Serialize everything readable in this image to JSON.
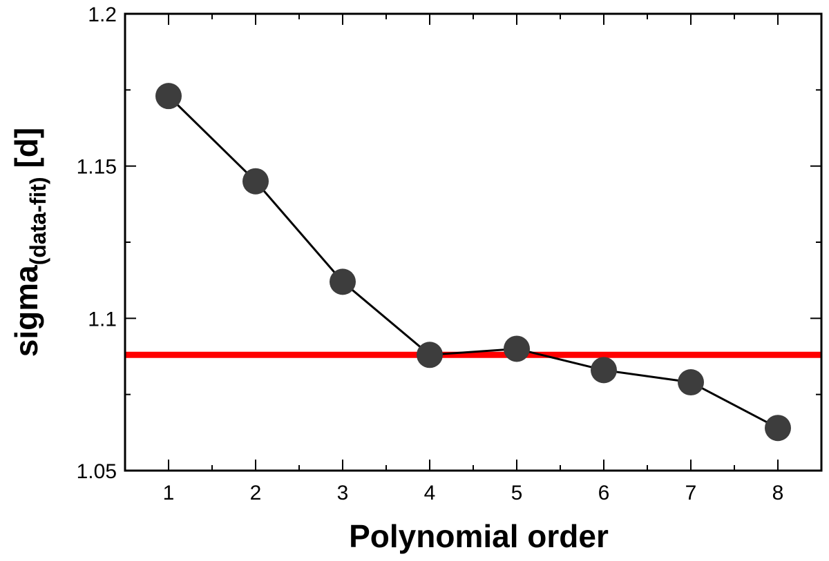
{
  "chart_data": {
    "type": "line",
    "title": "",
    "xlabel": "Polynomial order",
    "ylabel": {
      "base": "sigma",
      "subscript": "(data-fit)",
      "suffix": " [d]"
    },
    "xlim": [
      0.5,
      8.5
    ],
    "ylim": [
      1.05,
      1.2
    ],
    "x_ticks": [
      1,
      2,
      3,
      4,
      5,
      6,
      7,
      8
    ],
    "y_ticks": [
      1.05,
      1.1,
      1.15,
      1.2
    ],
    "y_tick_labels": [
      "1.05",
      "1.1",
      "1.15",
      "1.2"
    ],
    "grid": false,
    "series": [
      {
        "x": [
          1,
          2,
          3,
          4,
          5,
          6,
          7,
          8
        ],
        "y": [
          1.173,
          1.145,
          1.112,
          1.088,
          1.09,
          1.083,
          1.079,
          1.064
        ],
        "marker_color": "#3d3d3d",
        "line_color": "#000000"
      }
    ],
    "reference_line": {
      "y": 1.088,
      "color": "#ff0000"
    }
  }
}
